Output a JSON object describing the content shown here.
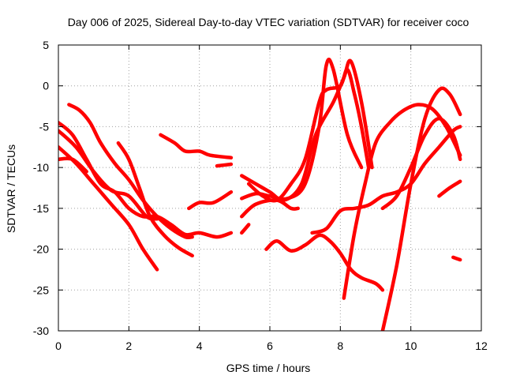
{
  "chart_data": {
    "type": "scatter",
    "title": "Day 006 of 2025, Sidereal Day-to-day VTEC variation (SDTVAR) for receiver coco",
    "xlabel": "GPS time / hours",
    "ylabel": "SDTVAR / TECUs",
    "xlim": [
      0,
      12
    ],
    "ylim": [
      -30,
      5
    ],
    "xticks": [
      "0",
      "2",
      "4",
      "6",
      "8",
      "10",
      "12"
    ],
    "yticks": [
      "5",
      "0",
      "-5",
      "-10",
      "-15",
      "-20",
      "-25",
      "-30"
    ],
    "grid": true,
    "marker": "+",
    "color": "#ff0000",
    "series": [
      {
        "name": "arc-1",
        "points": [
          [
            0.0,
            -4.5
          ],
          [
            0.4,
            -6
          ],
          [
            0.8,
            -9
          ],
          [
            1.2,
            -12
          ],
          [
            1.6,
            -13
          ],
          [
            2.0,
            -15
          ],
          [
            2.4,
            -16
          ],
          [
            2.8,
            -16
          ],
          [
            3.2,
            -17
          ],
          [
            3.6,
            -18.2
          ],
          [
            4.0,
            -18
          ],
          [
            4.5,
            -18.5
          ],
          [
            4.9,
            -18
          ]
        ]
      },
      {
        "name": "arc-2",
        "points": [
          [
            0.0,
            -5.5
          ],
          [
            0.5,
            -7.5
          ],
          [
            1.0,
            -10.5
          ],
          [
            1.5,
            -12.8
          ],
          [
            2.0,
            -13.5
          ],
          [
            2.5,
            -16
          ],
          [
            2.8,
            -16.3
          ]
        ]
      },
      {
        "name": "arc-3",
        "points": [
          [
            0.0,
            -7.5
          ],
          [
            0.5,
            -9.5
          ],
          [
            1.0,
            -12
          ],
          [
            1.5,
            -14.5
          ],
          [
            2.0,
            -17
          ],
          [
            2.4,
            -20
          ],
          [
            2.8,
            -22.5
          ]
        ]
      },
      {
        "name": "arc-4",
        "points": [
          [
            0.0,
            -9
          ],
          [
            0.4,
            -9
          ],
          [
            0.8,
            -10.5
          ]
        ]
      },
      {
        "name": "arc-5",
        "points": [
          [
            0.3,
            -2.3
          ],
          [
            0.6,
            -3
          ],
          [
            0.9,
            -4.5
          ],
          [
            1.2,
            -7
          ],
          [
            1.6,
            -9.5
          ],
          [
            2.0,
            -11.5
          ],
          [
            2.4,
            -14
          ],
          [
            2.8,
            -16
          ],
          [
            3.2,
            -17.5
          ],
          [
            3.6,
            -18.5
          ],
          [
            3.8,
            -18.5
          ]
        ]
      },
      {
        "name": "arc-6",
        "points": [
          [
            1.7,
            -7
          ],
          [
            2.0,
            -9
          ],
          [
            2.3,
            -12.5
          ],
          [
            2.6,
            -16
          ],
          [
            3.0,
            -18.3
          ],
          [
            3.4,
            -19.8
          ],
          [
            3.8,
            -20.8
          ]
        ]
      },
      {
        "name": "arc-7",
        "points": [
          [
            2.9,
            -6
          ],
          [
            3.3,
            -7
          ],
          [
            3.6,
            -8
          ],
          [
            4.0,
            -8
          ],
          [
            4.3,
            -8.5
          ],
          [
            4.9,
            -8.8
          ]
        ]
      },
      {
        "name": "arc-7b",
        "points": [
          [
            4.5,
            -9.8
          ],
          [
            4.9,
            -9.6
          ]
        ]
      },
      {
        "name": "arc-8",
        "points": [
          [
            3.7,
            -15
          ],
          [
            4.0,
            -14.3
          ],
          [
            4.4,
            -14.3
          ],
          [
            4.9,
            -13
          ]
        ]
      },
      {
        "name": "arc-9",
        "points": [
          [
            5.4,
            -12
          ],
          [
            5.8,
            -13.5
          ],
          [
            6.2,
            -14
          ],
          [
            6.6,
            -12
          ],
          [
            7.0,
            -9
          ],
          [
            7.4,
            -2
          ],
          [
            7.6,
            -0.5
          ],
          [
            8.0,
            0
          ],
          [
            8.2,
            2
          ],
          [
            8.4,
            -1
          ],
          [
            8.6,
            -5
          ],
          [
            8.8,
            -10
          ]
        ]
      },
      {
        "name": "arc-10",
        "points": [
          [
            5.2,
            -13.8
          ],
          [
            5.6,
            -13.2
          ],
          [
            6.0,
            -13.5
          ],
          [
            6.5,
            -13.8
          ],
          [
            7.0,
            -12
          ],
          [
            7.4,
            -5
          ],
          [
            7.6,
            2.5
          ],
          [
            7.8,
            2
          ],
          [
            8.2,
            -6
          ],
          [
            8.6,
            -10
          ]
        ]
      },
      {
        "name": "arc-11",
        "points": [
          [
            5.2,
            -11
          ],
          [
            5.6,
            -12
          ],
          [
            6.0,
            -13
          ],
          [
            6.4,
            -14
          ],
          [
            6.9,
            -12
          ],
          [
            7.3,
            -6
          ],
          [
            7.8,
            -2
          ],
          [
            8.1,
            1
          ],
          [
            8.3,
            3
          ],
          [
            8.6,
            -2
          ],
          [
            8.9,
            -10
          ]
        ]
      },
      {
        "name": "arc-12",
        "points": [
          [
            5.2,
            -16
          ],
          [
            5.6,
            -14.5
          ],
          [
            6.2,
            -14
          ],
          [
            6.6,
            -15
          ],
          [
            6.8,
            -15
          ]
        ]
      },
      {
        "name": "arc-12b",
        "points": [
          [
            5.2,
            -18
          ],
          [
            5.4,
            -17
          ]
        ]
      },
      {
        "name": "arc-13",
        "points": [
          [
            5.9,
            -20
          ],
          [
            6.2,
            -19
          ],
          [
            6.6,
            -20.2
          ],
          [
            7.0,
            -19.5
          ],
          [
            7.4,
            -18.3
          ],
          [
            7.7,
            -19
          ],
          [
            8.0,
            -20.5
          ],
          [
            8.3,
            -22.5
          ],
          [
            8.6,
            -23.5
          ],
          [
            9.0,
            -24.2
          ],
          [
            9.2,
            -25
          ]
        ]
      },
      {
        "name": "arc-14",
        "points": [
          [
            7.2,
            -18
          ],
          [
            7.6,
            -17.5
          ],
          [
            8.0,
            -15.3
          ],
          [
            8.4,
            -15
          ],
          [
            8.8,
            -14.6
          ],
          [
            9.2,
            -13.5
          ],
          [
            9.6,
            -13
          ],
          [
            10.0,
            -12
          ],
          [
            10.4,
            -9.5
          ],
          [
            10.8,
            -7.5
          ],
          [
            11.2,
            -5.5
          ],
          [
            11.4,
            -5
          ]
        ]
      },
      {
        "name": "arc-15",
        "points": [
          [
            8.1,
            -26
          ],
          [
            8.4,
            -18
          ],
          [
            8.7,
            -12
          ],
          [
            9.0,
            -7
          ],
          [
            9.4,
            -4.5
          ],
          [
            9.8,
            -3
          ],
          [
            10.2,
            -2.3
          ],
          [
            10.6,
            -2.8
          ],
          [
            11.0,
            -5
          ],
          [
            11.4,
            -8.5
          ]
        ]
      },
      {
        "name": "arc-16",
        "points": [
          [
            9.2,
            -30
          ],
          [
            9.6,
            -22
          ],
          [
            10.0,
            -12
          ],
          [
            10.4,
            -4
          ],
          [
            10.8,
            -0.5
          ],
          [
            11.1,
            -1
          ],
          [
            11.4,
            -3.5
          ]
        ]
      },
      {
        "name": "arc-17",
        "points": [
          [
            9.2,
            -15
          ],
          [
            9.6,
            -13.5
          ],
          [
            10.0,
            -10
          ],
          [
            10.4,
            -6
          ],
          [
            10.8,
            -4
          ],
          [
            11.2,
            -6
          ],
          [
            11.4,
            -9
          ]
        ]
      },
      {
        "name": "arc-18",
        "points": [
          [
            10.8,
            -13.5
          ],
          [
            11.1,
            -12.5
          ],
          [
            11.4,
            -11.7
          ]
        ]
      },
      {
        "name": "arc-18b",
        "points": [
          [
            11.2,
            -21
          ],
          [
            11.4,
            -21.3
          ]
        ]
      }
    ]
  }
}
